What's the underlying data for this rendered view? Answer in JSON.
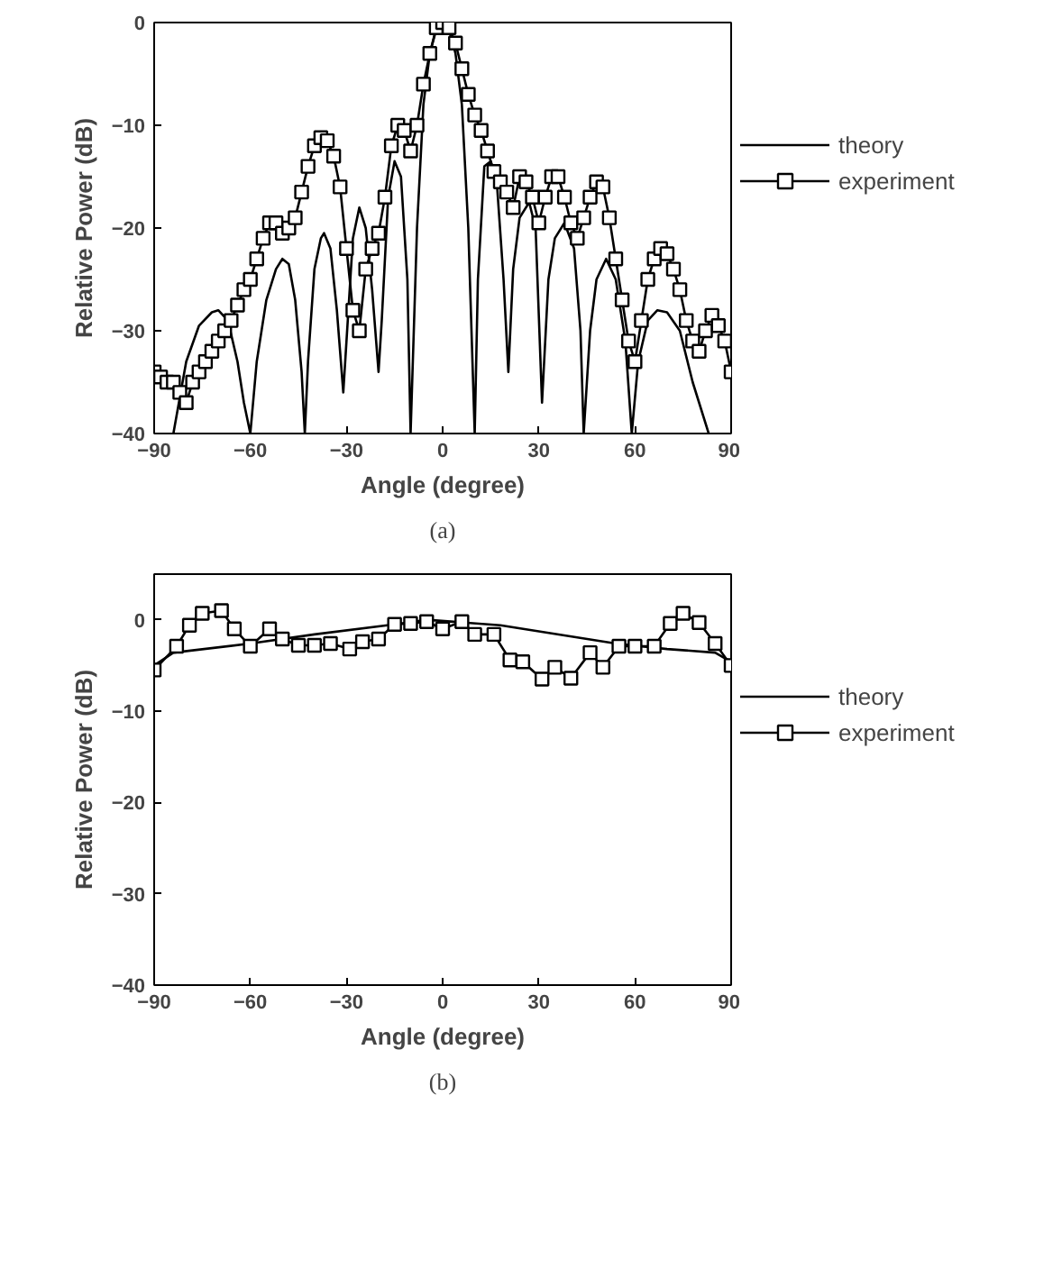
{
  "chart_data": [
    {
      "type": "line",
      "xlabel": "Angle (degree)",
      "ylabel": "Relative Power (dB)",
      "xlim": [
        -90,
        90
      ],
      "xticks": [
        -90,
        -60,
        -30,
        0,
        30,
        60,
        90
      ],
      "ylim": [
        -40,
        0
      ],
      "yticks": [
        -40,
        -30,
        -20,
        -10,
        0
      ],
      "grid": false,
      "legend": "right",
      "annotations": [
        "(a)"
      ],
      "series": [
        {
          "name": "theory",
          "color": "#000000",
          "marker": "none",
          "x": [
            -84,
            -80,
            -76,
            -72,
            -70,
            -67,
            -64,
            -62,
            -60,
            -58,
            -55,
            -52,
            -50,
            -48,
            -46,
            -44,
            -43,
            -42,
            -40,
            -38,
            -37,
            -35,
            -33,
            -31,
            -30,
            -28,
            -26,
            -24,
            -22,
            -20,
            -19,
            -17,
            -15,
            -13,
            -11,
            -10,
            -8,
            -6,
            -4,
            -2,
            0,
            2,
            4,
            6,
            8,
            10,
            11,
            13,
            15,
            17,
            19,
            20.5,
            22,
            24,
            27,
            29,
            31,
            33,
            35,
            38,
            41,
            43,
            44,
            46,
            48,
            51,
            54,
            57,
            59,
            61,
            64,
            67,
            70,
            74,
            78,
            83
          ],
          "values": [
            -40,
            -33,
            -29.5,
            -28.2,
            -28,
            -29,
            -33,
            -37,
            -40,
            -33,
            -27,
            -24,
            -23,
            -23.5,
            -27,
            -34,
            -40,
            -33,
            -24,
            -21,
            -20.5,
            -22,
            -28,
            -36,
            -31,
            -21,
            -18,
            -20,
            -26,
            -34,
            -29,
            -17,
            -13.5,
            -15,
            -25,
            -40,
            -20,
            -8,
            -3,
            -0.7,
            0,
            -0.7,
            -3,
            -8,
            -20,
            -40,
            -25,
            -14,
            -13.5,
            -16,
            -25,
            -34,
            -24,
            -19,
            -17.5,
            -20,
            -37,
            -25,
            -21,
            -19.5,
            -22,
            -30,
            -40,
            -30,
            -25,
            -23,
            -25,
            -31,
            -40,
            -33,
            -29,
            -28,
            -28.2,
            -30,
            -35,
            -40
          ]
        },
        {
          "name": "experiment",
          "color": "#000000",
          "marker": "square",
          "x": [
            -90,
            -88,
            -86,
            -84,
            -82,
            -80,
            -78,
            -76,
            -74,
            -72,
            -70,
            -68,
            -66,
            -64,
            -62,
            -60,
            -58,
            -56,
            -54,
            -52,
            -50,
            -48,
            -46,
            -44,
            -42,
            -40,
            -38,
            -36,
            -34,
            -32,
            -30,
            -28,
            -26,
            -24,
            -22,
            -20,
            -18,
            -16,
            -14,
            -12,
            -10,
            -8,
            -6,
            -4,
            -2,
            0,
            2,
            4,
            6,
            8,
            10,
            12,
            14,
            16,
            18,
            20,
            22,
            24,
            26,
            28,
            30,
            32,
            34,
            36,
            38,
            40,
            42,
            44,
            46,
            48,
            50,
            52,
            54,
            56,
            58,
            60,
            62,
            64,
            66,
            68,
            70,
            72,
            74,
            76,
            78,
            80,
            82,
            84,
            86,
            88,
            90
          ],
          "values": [
            -34,
            -34.5,
            -35,
            -35,
            -36,
            -37,
            -35,
            -34,
            -33,
            -32,
            -31,
            -30,
            -29,
            -27.5,
            -26,
            -25,
            -23,
            -21,
            -19.5,
            -19.5,
            -20.5,
            -20,
            -19,
            -16.5,
            -14,
            -12,
            -11.2,
            -11.5,
            -13,
            -16,
            -22,
            -28,
            -30,
            -24,
            -22,
            -20.5,
            -17,
            -12,
            -10,
            -10.5,
            -12.5,
            -10,
            -6,
            -3,
            -0.5,
            0,
            -0.5,
            -2,
            -4.5,
            -7,
            -9,
            -10.5,
            -12.5,
            -14.5,
            -15.5,
            -16.5,
            -18,
            -15,
            -15.5,
            -17,
            -19.5,
            -17,
            -15,
            -15,
            -17,
            -19.5,
            -21,
            -19,
            -17,
            -15.5,
            -16,
            -19,
            -23,
            -27,
            -31,
            -33,
            -29,
            -25,
            -23,
            -22,
            -22.5,
            -24,
            -26,
            -29,
            -31,
            -32,
            -30,
            -28.5,
            -29.5,
            -31,
            -34
          ]
        }
      ]
    },
    {
      "type": "line",
      "xlabel": "Angle (degree)",
      "ylabel": "Relative Power (dB)",
      "xlim": [
        -90,
        90
      ],
      "xticks": [
        -90,
        -60,
        -30,
        0,
        30,
        60,
        90
      ],
      "ylim": [
        -40,
        5
      ],
      "yticks": [
        -40,
        -30,
        -20,
        -10,
        0
      ],
      "grid": false,
      "legend": "right",
      "annotations": [
        "(b)"
      ],
      "series": [
        {
          "name": "theory",
          "color": "#000000",
          "marker": "none",
          "x": [
            -90,
            -84,
            -60,
            -40,
            -15,
            -5,
            18,
            54,
            70,
            85,
            90
          ],
          "values": [
            -5,
            -3.6,
            -2.6,
            -1.6,
            -0.5,
            0,
            -0.6,
            -2.6,
            -3.2,
            -3.6,
            -4.6
          ]
        },
        {
          "name": "experiment",
          "color": "#000000",
          "marker": "square",
          "x": [
            -90,
            -83,
            -79,
            -75,
            -69,
            -65,
            -60,
            -54,
            -50,
            -45,
            -40,
            -35,
            -29,
            -25,
            -20,
            -15,
            -10,
            -5,
            0,
            6,
            10,
            16,
            21,
            25,
            31,
            35,
            40,
            46,
            50,
            55,
            60,
            66,
            71,
            75,
            80,
            85,
            90
          ],
          "values": [
            -5.5,
            -2.9,
            -0.6,
            0.7,
            1,
            -1,
            -2.9,
            -1,
            -2.1,
            -2.8,
            -2.8,
            -2.6,
            -3.2,
            -2.4,
            -2.1,
            -0.5,
            -0.4,
            -0.2,
            -1,
            -0.2,
            -1.6,
            -1.6,
            -4.4,
            -4.6,
            -6.5,
            -5.2,
            -6.4,
            -3.6,
            -5.2,
            -2.9,
            -2.9,
            -2.9,
            -0.4,
            0.7,
            -0.3,
            -2.6,
            -5
          ]
        }
      ]
    }
  ]
}
